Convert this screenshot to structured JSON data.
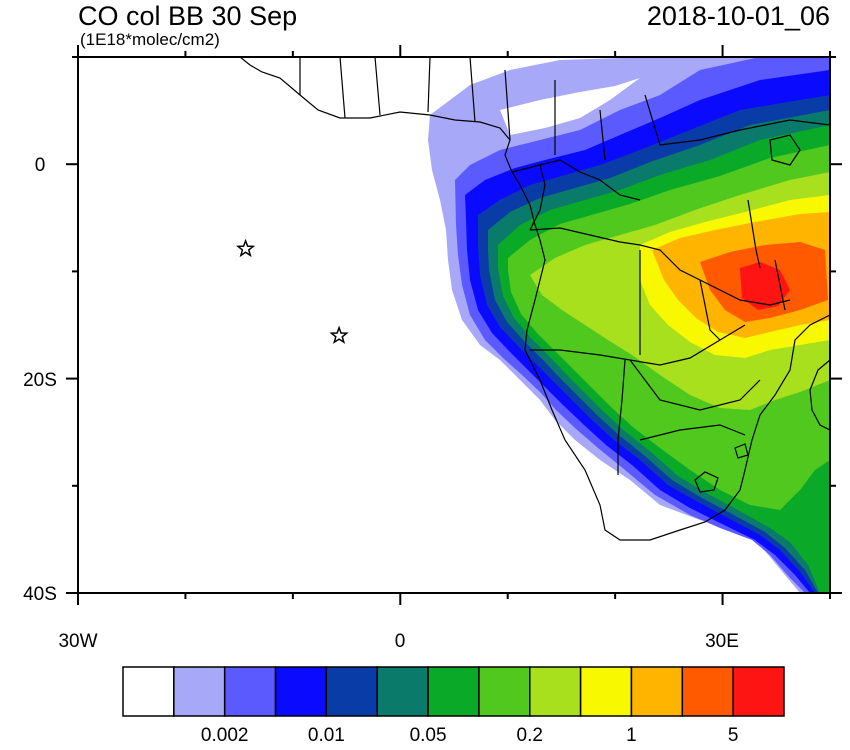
{
  "title": "CO col BB 30 Sep",
  "units": "(1E18*molec/cm2)",
  "datetime": "2018-10-01_06",
  "map": {
    "lat_labels": [
      "0",
      "20S",
      "40S"
    ],
    "lon_labels": [
      "30W",
      "0",
      "30E"
    ],
    "lon_range": [
      -30,
      40
    ],
    "lat_range": [
      -40,
      10
    ]
  },
  "markers": [
    {
      "name": "star-marker",
      "lon": -14.4,
      "lat": -7.9
    },
    {
      "name": "star-marker",
      "lon": -5.7,
      "lat": -16.0
    }
  ],
  "colorbar": {
    "colors": [
      "#ffffff",
      "#a8a8f8",
      "#5a5aff",
      "#0a0aff",
      "#0a3ca8",
      "#0a7a6a",
      "#0aaa28",
      "#50c81e",
      "#a8e01e",
      "#f8f800",
      "#ffb400",
      "#ff5a00",
      "#ff1414"
    ],
    "labels": [
      "0.002",
      "0.01",
      "0.05",
      "0.2",
      "1",
      "5"
    ]
  }
}
